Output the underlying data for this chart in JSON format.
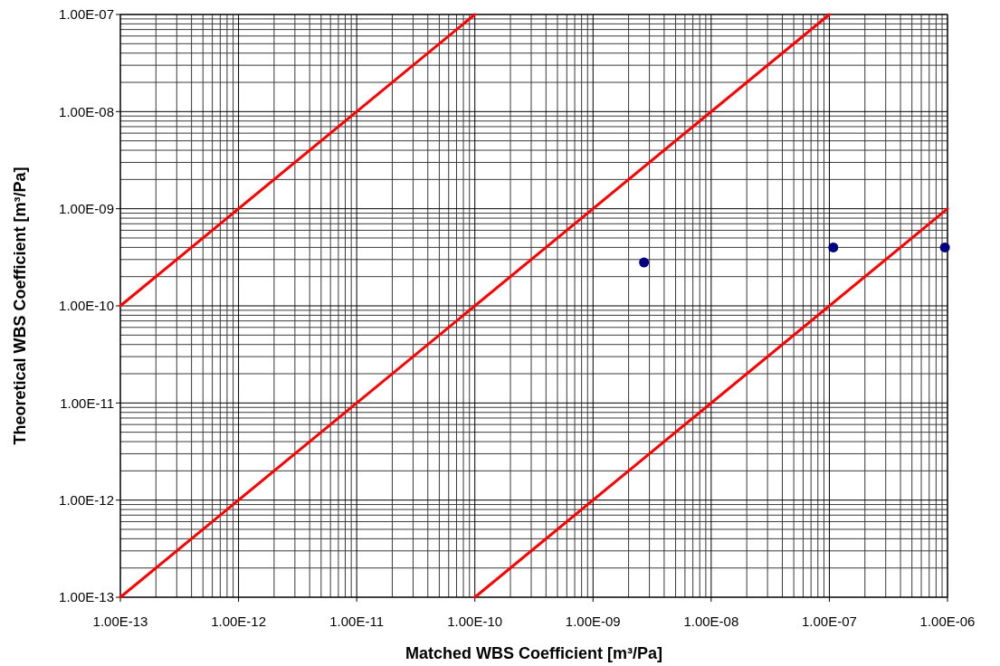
{
  "chart_data": {
    "type": "scatter",
    "xlabel": "Matched WBS Coefficient [m³/Pa]",
    "ylabel": "Theoretical WBS Coefficient [m³/Pa]",
    "log": "xy",
    "grid": true,
    "marker": "circle",
    "line_style": "solid",
    "xlim": [
      1e-13,
      1e-06
    ],
    "ylim": [
      1e-13,
      1e-07
    ],
    "xticks": [
      {
        "value": 1e-13,
        "label": "1.00E-13"
      },
      {
        "value": 1e-12,
        "label": "1.00E-12"
      },
      {
        "value": 1e-11,
        "label": "1.00E-11"
      },
      {
        "value": 1e-10,
        "label": "1.00E-10"
      },
      {
        "value": 1e-09,
        "label": "1.00E-09"
      },
      {
        "value": 1e-08,
        "label": "1.00E-08"
      },
      {
        "value": 1e-07,
        "label": "1.00E-07"
      },
      {
        "value": 1e-06,
        "label": "1.00E-06"
      }
    ],
    "yticks": [
      {
        "value": 1e-13,
        "label": "1.00E-13"
      },
      {
        "value": 1e-12,
        "label": "1.00E-12"
      },
      {
        "value": 1e-11,
        "label": "1.00E-11"
      },
      {
        "value": 1e-10,
        "label": "1.00E-10"
      },
      {
        "value": 1e-09,
        "label": "1.00E-09"
      },
      {
        "value": 1e-08,
        "label": "1.00E-08"
      },
      {
        "value": 1e-07,
        "label": "1.00E-07"
      }
    ],
    "series": [
      {
        "type": "line",
        "marker": "none",
        "color": "#ff0000",
        "x": [
          1e-13,
          1e-10
        ],
        "values": [
          1e-10,
          1e-07
        ]
      },
      {
        "type": "line",
        "marker": "none",
        "color": "#ff0000",
        "x": [
          1e-13,
          1e-07
        ],
        "values": [
          1e-13,
          1e-07
        ]
      },
      {
        "type": "line",
        "marker": "none",
        "color": "#ff0000",
        "x": [
          1e-10,
          1e-06
        ],
        "values": [
          1e-13,
          1e-09
        ]
      },
      {
        "color": "#000080",
        "x": [
          2.7e-09,
          1.08e-07,
          9.5e-07
        ],
        "values": [
          2.8e-10,
          4e-10,
          4e-10
        ]
      }
    ]
  }
}
